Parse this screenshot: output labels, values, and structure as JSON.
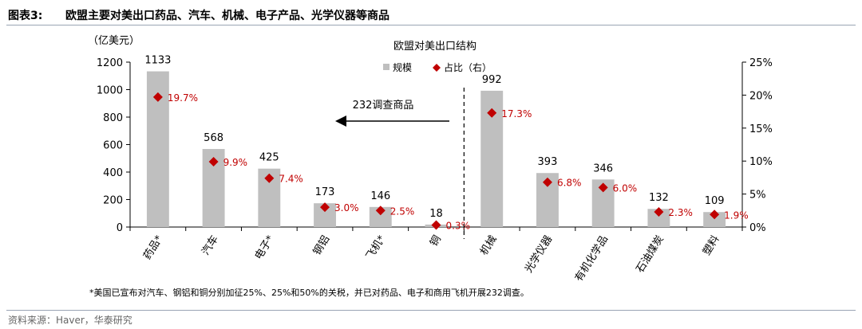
{
  "figure": {
    "number": "图表3:",
    "title": "欧盟主要对美出口药品、汽车、机械、电子产品、光学仪器等商品",
    "footnote": "*美国已宣布对汽车、钢铝和铜分别加征25%、25%和50%的关税，并已对药品、电子和商用飞机开展232调查。",
    "source": "资料来源：Haver，华泰研究"
  },
  "chart_data": {
    "type": "bar",
    "title": "欧盟对美出口结构",
    "left_unit": "（亿美元）",
    "categories": [
      "药品*",
      "汽车",
      "电子*",
      "钢铝",
      "飞机*",
      "铜",
      "机械",
      "光学仪器",
      "有机化学品",
      "石油煤炭",
      "塑料"
    ],
    "series": [
      {
        "name": "规模",
        "kind": "bar",
        "axis": "left",
        "color": "#bfbfbf",
        "values": [
          1133,
          568,
          425,
          173,
          146,
          18,
          992,
          393,
          346,
          132,
          109
        ],
        "labels": [
          "1133",
          "568",
          "425",
          "173",
          "146",
          "18",
          "992",
          "393",
          "346",
          "132",
          "109"
        ]
      },
      {
        "name": "占比（右）",
        "kind": "scatter",
        "marker": "diamond",
        "axis": "right",
        "color": "#c00000",
        "values": [
          19.7,
          9.9,
          7.4,
          3.0,
          2.5,
          0.3,
          17.3,
          6.8,
          6.0,
          2.3,
          1.9
        ],
        "labels": [
          "19.7%",
          "9.9%",
          "7.4%",
          "3.0%",
          "2.5%",
          "0.3%",
          "17.3%",
          "6.8%",
          "6.0%",
          "2.3%",
          "1.9%"
        ]
      }
    ],
    "y_left": {
      "min": 0,
      "max": 1200,
      "ticks": [
        "0",
        "200",
        "400",
        "600",
        "800",
        "1000",
        "1200"
      ]
    },
    "y_right": {
      "min": 0,
      "max": 25,
      "ticks": [
        "0%",
        "5%",
        "10%",
        "15%",
        "20%",
        "25%"
      ]
    },
    "annotation": {
      "text": "232调查商品",
      "arrow": "left"
    },
    "divider": {
      "after_category_index": 5,
      "style": "dashed"
    },
    "legend_position": "top-center",
    "grid": false
  }
}
